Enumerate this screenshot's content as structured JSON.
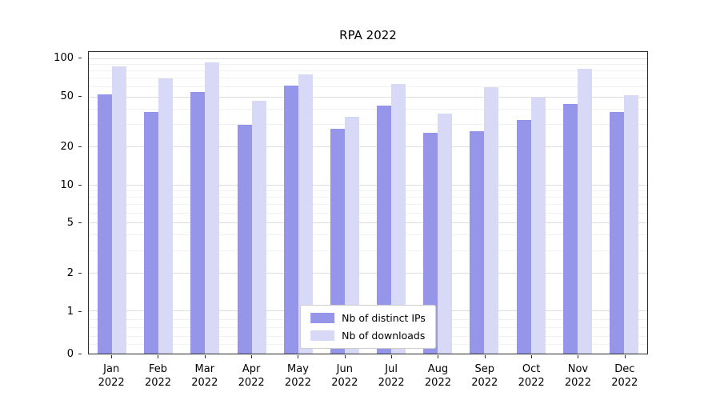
{
  "chart_data": {
    "type": "bar",
    "title": "RPA 2022",
    "categories": [
      "Jan",
      "Feb",
      "Mar",
      "Apr",
      "May",
      "Jun",
      "Jul",
      "Aug",
      "Sep",
      "Oct",
      "Nov",
      "Dec"
    ],
    "year": "2022",
    "series": [
      {
        "name": "Nb of distinct IPs",
        "color": "#9595ea",
        "values": [
          53,
          38,
          55,
          30,
          62,
          28,
          43,
          26,
          27,
          33,
          44,
          38
        ]
      },
      {
        "name": "Nb of downloads",
        "color": "#d8d8f7",
        "values": [
          88,
          70,
          95,
          47,
          76,
          35,
          64,
          37,
          60,
          50,
          84,
          52
        ]
      }
    ],
    "yticks": [
      0,
      1,
      2,
      5,
      10,
      20,
      50,
      100
    ],
    "minor_yticks": [
      0.2,
      0.4,
      0.6,
      0.8,
      3,
      4,
      6,
      7,
      8,
      9,
      30,
      40,
      60,
      70,
      80,
      90
    ],
    "ylim": [
      0,
      100
    ],
    "yscale": "symlog",
    "grid": true,
    "legend_position": "lower center"
  }
}
